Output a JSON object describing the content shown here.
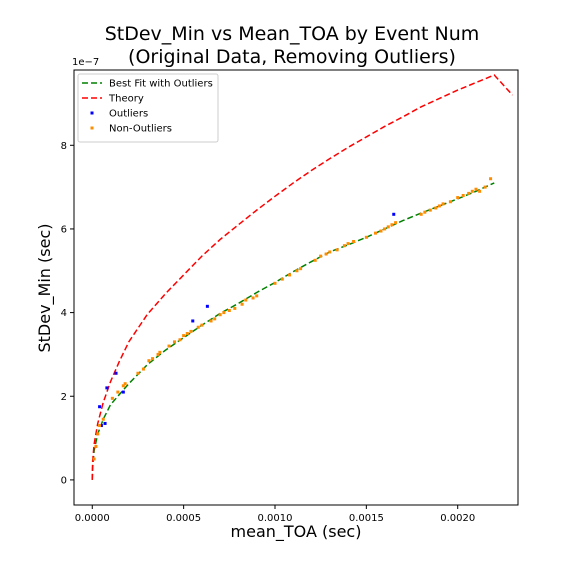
{
  "chart_data": {
    "type": "scatter",
    "title_lines": [
      "StDev_Min vs Mean_TOA by Event Num",
      "(Original Data, Removing Outliers)"
    ],
    "xlabel": "mean_TOA (sec)",
    "ylabel": "StDev_Min (sec)",
    "y_offset_text": "1e−7",
    "xlim": [
      -0.0001,
      0.00233
    ],
    "ylim": [
      -0.6,
      9.8
    ],
    "y_unit_multiplier": 1e-07,
    "x_ticks": [
      0.0,
      0.0005,
      0.001,
      0.0015,
      0.002
    ],
    "x_tick_labels": [
      "0.0000",
      "0.0005",
      "0.0010",
      "0.0015",
      "0.0020"
    ],
    "y_ticks": [
      0,
      2,
      4,
      6,
      8
    ],
    "y_tick_labels": [
      "0",
      "2",
      "4",
      "6",
      "8"
    ],
    "grid": false,
    "legend_position": "upper-left",
    "series": [
      {
        "name": "Best Fit with Outliers",
        "kind": "line",
        "style": "dashed",
        "color": "#008000",
        "x": [
          0.0,
          2e-06,
          1e-05,
          3e-05,
          6e-05,
          0.0001,
          0.00015,
          0.0002,
          0.0003,
          0.0004,
          0.0005,
          0.0006,
          0.0007,
          0.0008,
          0.0009,
          0.001,
          0.0011,
          0.0012,
          0.0013,
          0.0014,
          0.0015,
          0.0016,
          0.0017,
          0.0018,
          0.0019,
          0.002,
          0.0021,
          0.0022
        ],
        "y": [
          0.0,
          0.3,
          0.7,
          1.1,
          1.45,
          1.8,
          2.05,
          2.3,
          2.75,
          3.1,
          3.4,
          3.7,
          3.98,
          4.22,
          4.48,
          4.72,
          4.98,
          5.22,
          5.45,
          5.62,
          5.8,
          6.0,
          6.2,
          6.38,
          6.55,
          6.72,
          6.9,
          7.1
        ]
      },
      {
        "name": "Theory",
        "kind": "line",
        "style": "dashed",
        "color": "#ff0000",
        "x": [
          0.0,
          2e-06,
          1e-05,
          3e-05,
          6e-05,
          0.0001,
          0.00015,
          0.0002,
          0.0003,
          0.0004,
          0.0005,
          0.0006,
          0.0007,
          0.0008,
          0.0009,
          0.001,
          0.0011,
          0.0012,
          0.0013,
          0.0014,
          0.0015,
          0.0016,
          0.0017,
          0.0018,
          0.0019,
          0.002,
          0.0021,
          0.0022,
          0.0023
        ],
        "y": [
          0.0,
          0.45,
          0.85,
          1.35,
          1.85,
          2.35,
          2.85,
          3.3,
          3.95,
          4.45,
          4.9,
          5.35,
          5.75,
          6.1,
          6.45,
          6.78,
          7.1,
          7.4,
          7.68,
          7.95,
          8.2,
          8.45,
          8.68,
          8.92,
          9.12,
          9.32,
          9.5,
          9.68,
          9.2
        ]
      },
      {
        "name": "Outliers",
        "kind": "scatter",
        "color": "#0000ff",
        "x": [
          4e-05,
          5e-05,
          7e-05,
          8e-05,
          0.00013,
          0.00017,
          0.00055,
          0.00063,
          0.00165
        ],
        "y": [
          1.75,
          1.3,
          1.35,
          2.2,
          2.55,
          2.1,
          3.8,
          4.15,
          6.35
        ]
      },
      {
        "name": "Non-Outliers",
        "kind": "scatter",
        "color": "#ff8c00",
        "x": [
          1e-05,
          2e-05,
          3e-05,
          4e-05,
          6e-05,
          0.00011,
          0.00014,
          0.00017,
          0.00018,
          0.00025,
          0.00028,
          0.00031,
          0.00033,
          0.00036,
          0.00037,
          0.00042,
          0.00045,
          0.00048,
          0.0005,
          0.00052,
          0.00054,
          0.00058,
          0.0006,
          0.00065,
          0.00067,
          0.0007,
          0.00072,
          0.00075,
          0.00078,
          0.00082,
          0.00084,
          0.00088,
          0.0009,
          0.001,
          0.00104,
          0.00108,
          0.00112,
          0.00114,
          0.00122,
          0.00125,
          0.00128,
          0.0013,
          0.00134,
          0.00138,
          0.0014,
          0.00143,
          0.0015,
          0.00155,
          0.00158,
          0.0016,
          0.00162,
          0.00164,
          0.00166,
          0.0018,
          0.00182,
          0.00185,
          0.00188,
          0.0019,
          0.00192,
          0.00196,
          0.002,
          0.00203,
          0.00206,
          0.00208,
          0.0021,
          0.00212,
          0.00215,
          0.00218
        ],
        "y": [
          0.5,
          0.8,
          1.1,
          1.3,
          1.45,
          1.95,
          2.1,
          2.25,
          2.3,
          2.55,
          2.65,
          2.85,
          2.9,
          3.0,
          3.05,
          3.2,
          3.3,
          3.35,
          3.45,
          3.5,
          3.55,
          3.65,
          3.7,
          3.8,
          3.85,
          3.95,
          4.0,
          4.05,
          4.1,
          4.2,
          4.3,
          4.35,
          4.4,
          4.7,
          4.8,
          4.9,
          5.0,
          5.05,
          5.25,
          5.35,
          5.4,
          5.45,
          5.5,
          5.6,
          5.65,
          5.7,
          5.8,
          5.9,
          5.95,
          6.0,
          6.05,
          6.1,
          6.15,
          6.35,
          6.4,
          6.45,
          6.5,
          6.55,
          6.6,
          6.65,
          6.75,
          6.8,
          6.85,
          6.9,
          6.95,
          6.9,
          7.0,
          7.2
        ]
      }
    ]
  }
}
